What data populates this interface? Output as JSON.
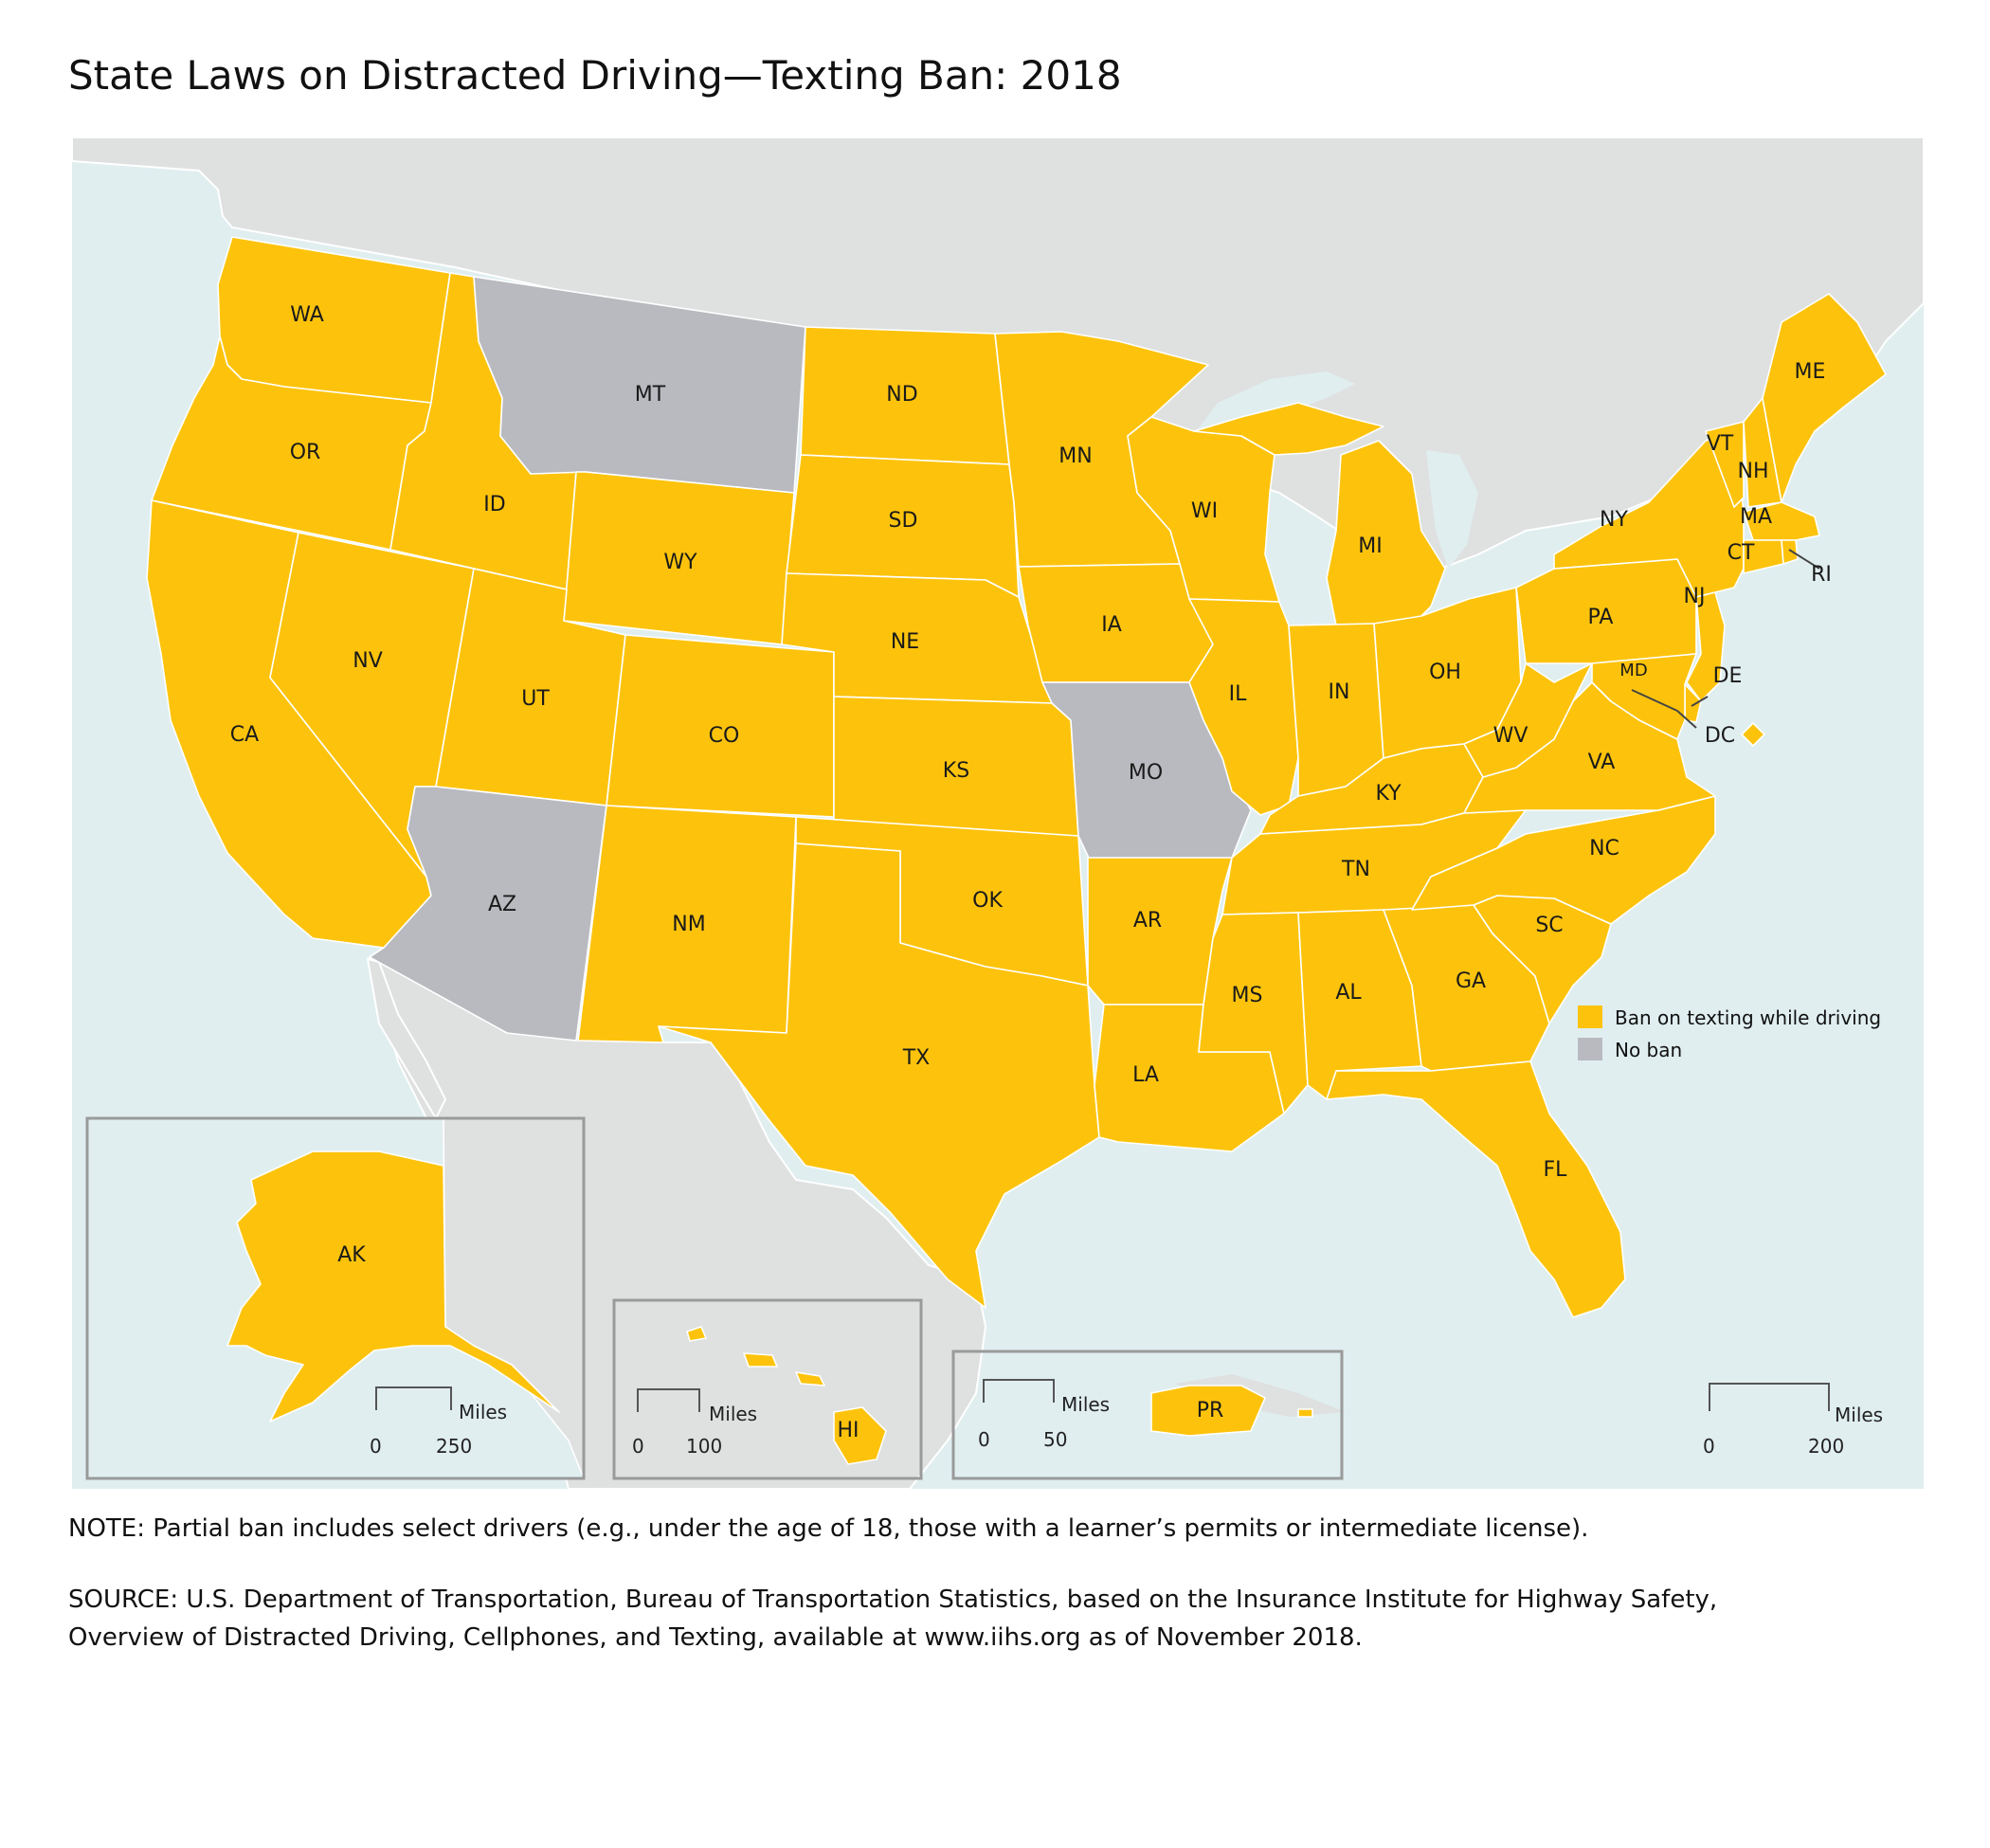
{
  "title": "State Laws on Distracted Driving—Texting Ban: 2018",
  "legend": [
    {
      "label": "Ban on texting while driving",
      "color": "#fdc30c"
    },
    {
      "label": "No ban",
      "color": "#b9bac0"
    }
  ],
  "colors": {
    "water": "#e0eef0",
    "foreign_land": "#dfe0e0",
    "ban": "#fdc30c",
    "no_ban": "#b9bac0",
    "inset_border": "#9a9a9a"
  },
  "states": {
    "WA": "ban",
    "OR": "ban",
    "CA": "ban",
    "ID": "ban",
    "NV": "ban",
    "MT": "no_ban",
    "WY": "ban",
    "UT": "ban",
    "AZ": "no_ban",
    "CO": "ban",
    "NM": "ban",
    "ND": "ban",
    "SD": "ban",
    "NE": "ban",
    "KS": "ban",
    "OK": "ban",
    "TX": "ban",
    "MN": "ban",
    "IA": "ban",
    "MO": "no_ban",
    "AR": "ban",
    "LA": "ban",
    "WI": "ban",
    "IL": "ban",
    "MI": "ban",
    "IN": "ban",
    "OH": "ban",
    "KY": "ban",
    "TN": "ban",
    "MS": "ban",
    "AL": "ban",
    "GA": "ban",
    "FL": "ban",
    "SC": "ban",
    "NC": "ban",
    "VA": "ban",
    "WV": "ban",
    "PA": "ban",
    "NY": "ban",
    "VT": "ban",
    "NH": "ban",
    "ME": "ban",
    "MA": "ban",
    "CT": "ban",
    "RI": "ban",
    "NJ": "ban",
    "DE": "ban",
    "MD": "ban",
    "DC": "ban",
    "AK": "ban",
    "HI": "ban",
    "PR": "ban"
  },
  "scales": {
    "alaska": {
      "unit": "Miles",
      "zero": "0",
      "max": "250"
    },
    "hawaii": {
      "unit": "Miles",
      "zero": "0",
      "max": "100"
    },
    "puerto_rico": {
      "unit": "Miles",
      "zero": "0",
      "max": "50"
    },
    "main": {
      "unit": "Miles",
      "zero": "0",
      "max": "200"
    }
  },
  "note": "NOTE: Partial ban includes select drivers (e.g., under the age of 18, those with a learner’s permits or intermediate license).",
  "source": "SOURCE: U.S. Department of Transportation, Bureau of Transportation Statistics, based on the Insurance Institute for Highway Safety, Overview of Distracted Driving, Cellphones, and Texting, available at www.iihs.org as of November 2018."
}
